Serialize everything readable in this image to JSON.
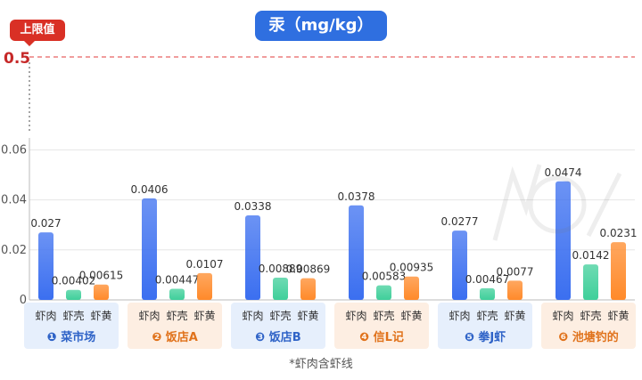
{
  "title": "汞（mg/kg）",
  "limit_badge": "上限值",
  "footnote": "*虾肉含虾线",
  "colors": {
    "shrimp_meat": "#3b6ff0",
    "shell": "#3fcf9a",
    "roe": "#ff8a2a",
    "limit": "#e23b3b",
    "group_blue_bg": "#e6effc",
    "group_orange_bg": "#fdeee2"
  },
  "chart_data": {
    "type": "bar",
    "categories": [
      "❶ 菜市场",
      "❷ 饭店A",
      "❸ 饭店B",
      "❹ 信L记",
      "❺ 拳J虾",
      "❻ 池塘钓的"
    ],
    "series": [
      {
        "name": "虾肉",
        "values": [
          0.027,
          0.0406,
          0.0338,
          0.0378,
          0.0277,
          0.0474
        ],
        "labels": [
          "0.027",
          "0.0406",
          "0.0338",
          "0.0378",
          "0.0277",
          "0.0474"
        ]
      },
      {
        "name": "虾壳",
        "values": [
          0.00402,
          0.00447,
          0.00889,
          0.00583,
          0.00467,
          0.0142
        ],
        "labels": [
          "0.00402",
          "0.00447",
          "0.00889",
          "0.00583",
          "0.00467",
          "0.0142"
        ]
      },
      {
        "name": "虾黄",
        "values": [
          0.00615,
          0.0107,
          0.00869,
          0.00935,
          0.0077,
          0.0231
        ],
        "labels": [
          "0.00615",
          "0.0107",
          "0.00869",
          "0.00935",
          "0.0077",
          "0.0231"
        ]
      }
    ],
    "y_ticks": [
      "0",
      "0.02",
      "0.04",
      "0.06"
    ],
    "y_tick_values": [
      0,
      0.02,
      0.04,
      0.06
    ],
    "ylim": [
      0,
      0.066
    ],
    "limit_line": {
      "value": 0.5,
      "label": "0.5"
    },
    "y_axis_break": true,
    "grid": true,
    "legend": "none"
  }
}
